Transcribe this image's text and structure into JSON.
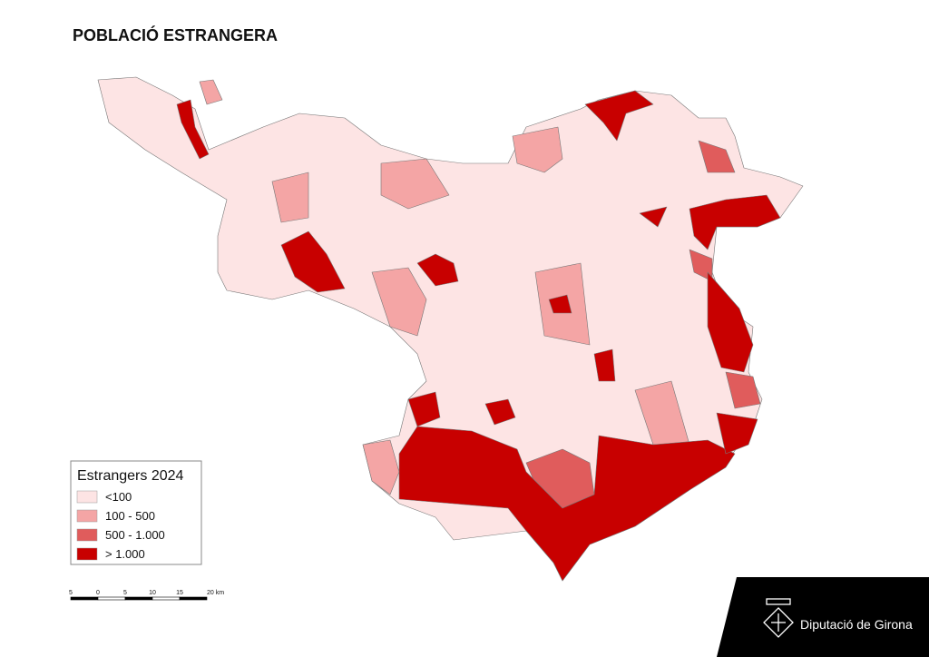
{
  "title": "POBLACIÓ ESTRANGERA",
  "legend": {
    "title": "Estrangers 2024",
    "items": [
      {
        "label": "<100",
        "color": "#fde4e4"
      },
      {
        "label": "100 - 500",
        "color": "#f4a5a5"
      },
      {
        "label": "500 - 1.000",
        "color": "#e05c5c"
      },
      {
        "label": "> 1.000",
        "color": "#c80000"
      }
    ]
  },
  "scale_bar": {
    "labels": [
      "5",
      "0",
      "5",
      "10",
      "15",
      "20 km"
    ]
  },
  "logo": {
    "text": "Diputació de Girona"
  }
}
